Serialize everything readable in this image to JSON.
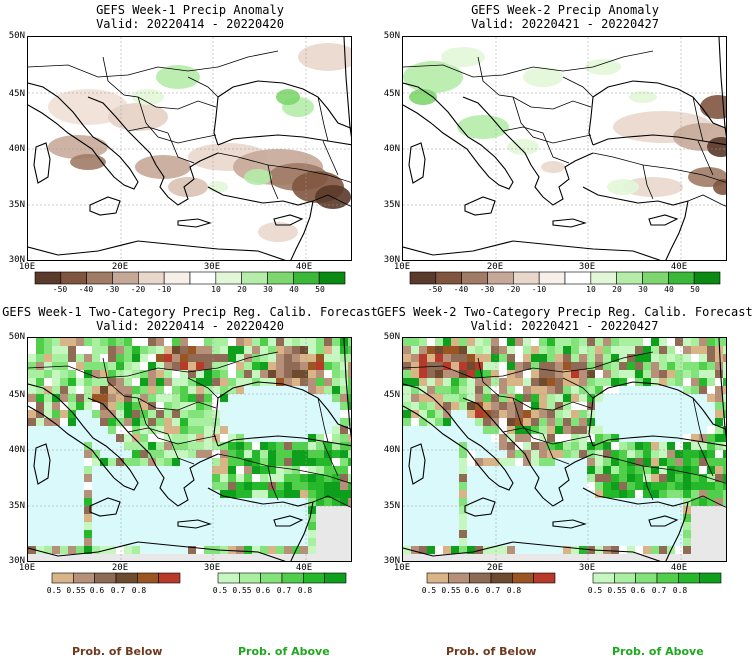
{
  "panels": [
    {
      "title1": "GEFS Week-1 Precip Anomaly",
      "title2": "Valid: 20220414 - 20220420"
    },
    {
      "title1": "GEFS Week-2 Precip Anomaly",
      "title2": "Valid: 20220421 - 20220427"
    },
    {
      "title1": "GEFS Week-1 Two-Category Precip Reg. Calib. Forecast",
      "title2": "Valid: 20220414 - 20220420"
    },
    {
      "title1": "GEFS Week-2 Two-Category Precip Reg. Calib. Forecast",
      "title2": "Valid: 20220421 - 20220427"
    }
  ],
  "axes": {
    "lat_labels": [
      "50N",
      "45N",
      "40N",
      "35N",
      "30N"
    ],
    "lon_labels": [
      "10E",
      "20E",
      "30E",
      "40E"
    ]
  },
  "anomaly_colorbar": {
    "labels": [
      "-50",
      "-40",
      "-30",
      "-20",
      "-10",
      "10",
      "20",
      "30",
      "40",
      "50"
    ],
    "colors": [
      "#5a3a2a",
      "#7f5540",
      "#a07b66",
      "#c6a898",
      "#e9d7cc",
      "#f7efe9",
      "#ffffff",
      "#e2f7d8",
      "#b5ecaa",
      "#7ed66e",
      "#3bb83a",
      "#0a8a12"
    ]
  },
  "prob_colorbars": {
    "below_labels": [
      "0.5",
      "0.55",
      "0.6",
      "0.7",
      "0.8"
    ],
    "above_labels": [
      "0.5",
      "0.55",
      "0.6",
      "0.7",
      "0.8"
    ],
    "below_colors": [
      "#d8b487",
      "#b7907a",
      "#8f6a55",
      "#6e4a2e",
      "#9b5522",
      "#b83a2a"
    ],
    "above_colors": [
      "#c6f7c0",
      "#a8f0a0",
      "#82e37a",
      "#52cf4a",
      "#25b82a",
      "#0ea01c"
    ]
  },
  "legend": {
    "below_label": "Prob. of Below",
    "above_label": "Prob. of Above",
    "below_color": "#6e3a1e",
    "above_color": "#1ea81e"
  },
  "map_colors": {
    "sea_prob": "#d9f9fb",
    "nodata": "#e8e8e8",
    "coast": "#000000",
    "grid": "#9a9a9a"
  }
}
